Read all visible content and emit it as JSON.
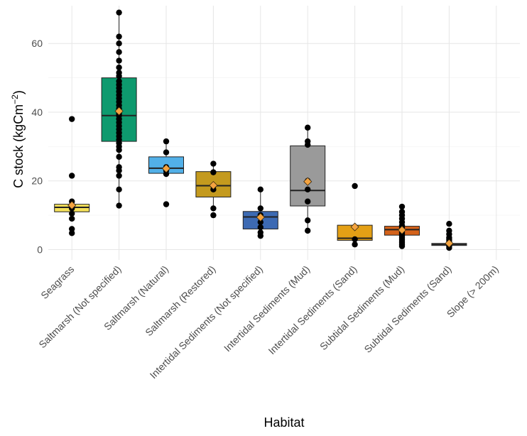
{
  "chart_data": {
    "type": "boxplot",
    "title": "",
    "xlabel": "Habitat",
    "ylabel": {
      "main": "C stock (kgCm",
      "superscript": "−2",
      "close": ")"
    },
    "ylim": [
      -3,
      71
    ],
    "yticks": [
      0,
      20,
      40,
      60
    ],
    "grid": true,
    "legend": "none",
    "mean_marker": {
      "shape": "diamond",
      "color": "#F4A340"
    },
    "categories": [
      {
        "name": "Seagrass",
        "color": "#F4E05A",
        "box": {
          "q1": 11.0,
          "median": 12.3,
          "q3": 13.2,
          "whisker_low": 11.0,
          "whisker_high": 13.2
        },
        "mean": 12.9,
        "points": [
          38.0,
          21.5,
          14.0,
          13.0,
          12.5,
          12.0,
          10.5,
          9.0,
          6.0,
          4.8
        ]
      },
      {
        "name": "Saltmarsh (Not specified)",
        "color": "#0E9A6E",
        "box": {
          "q1": 31.5,
          "median": 39.0,
          "q3": 50.0,
          "whisker_low": 12.8,
          "whisker_high": 69.0
        },
        "mean": 40.3,
        "points": [
          69.0,
          62.0,
          60.0,
          57.5,
          55.0,
          53.0,
          51.5,
          50.5,
          49.0,
          48.0,
          47.0,
          46.0,
          45.0,
          44.0,
          43.0,
          42.0,
          41.0,
          40.0,
          39.5,
          39.0,
          38.0,
          37.0,
          36.0,
          35.0,
          34.0,
          33.0,
          32.0,
          31.0,
          30.0,
          29.0,
          27.0,
          24.0,
          23.0,
          21.5,
          17.5,
          12.8
        ]
      },
      {
        "name": "Saltmarsh (Natural)",
        "color": "#52B0E8",
        "box": {
          "q1": 22.2,
          "median": 23.7,
          "q3": 27.0,
          "whisker_low": 21.8,
          "whisker_high": 31.5
        },
        "mean": 23.6,
        "points": [
          31.5,
          28.3,
          24.0,
          23.0,
          22.0,
          13.2
        ]
      },
      {
        "name": "Saltmarsh (Restored)",
        "color": "#C49A1E",
        "box": {
          "q1": 15.3,
          "median": 18.6,
          "q3": 22.7,
          "whisker_low": 12.0,
          "whisker_high": 25.0
        },
        "mean": 18.7,
        "points": [
          25.0,
          22.5,
          18.5,
          17.5,
          12.0,
          10.0
        ]
      },
      {
        "name": "Intertidal Sediments (Not specified)",
        "color": "#3D6AB3",
        "box": {
          "q1": 6.0,
          "median": 9.5,
          "q3": 11.1,
          "whisker_low": 4.0,
          "whisker_high": 17.5
        },
        "mean": 9.4,
        "points": [
          17.5,
          12.0,
          10.0,
          8.0,
          6.5,
          5.0,
          4.0
        ]
      },
      {
        "name": "Intertidal Sediments (Mud)",
        "color": "#9A9A9A",
        "box": {
          "q1": 12.7,
          "median": 17.2,
          "q3": 30.2,
          "whisker_low": 5.5,
          "whisker_high": 35.5
        },
        "mean": 19.8,
        "points": [
          35.5,
          31.5,
          30.5,
          20.0,
          17.5,
          14.0,
          8.5,
          5.5
        ]
      },
      {
        "name": "Intertidal Sediments (Sand)",
        "color": "#E4A015",
        "box": {
          "q1": 2.7,
          "median": 3.3,
          "q3": 7.1,
          "whisker_low": 1.5,
          "whisker_high": 7.1
        },
        "mean": 6.6,
        "points": [
          18.5,
          3.0,
          1.5
        ]
      },
      {
        "name": "Subtidal Sediments (Mud)",
        "color": "#D4621A",
        "box": {
          "q1": 4.2,
          "median": 5.8,
          "q3": 6.8,
          "whisker_low": 1.0,
          "whisker_high": 10.5
        },
        "mean": 5.7,
        "points": [
          12.5,
          11.0,
          10.0,
          9.0,
          8.0,
          7.0,
          6.5,
          6.0,
          5.5,
          5.0,
          4.5,
          4.0,
          3.5,
          3.0,
          2.5,
          2.0,
          1.5,
          1.0
        ]
      },
      {
        "name": "Subtidal Sediments (Sand)",
        "color": "#B5B5B5",
        "box": {
          "q1": 1.2,
          "median": 1.5,
          "q3": 1.8,
          "whisker_low": 0.5,
          "whisker_high": 2.0
        },
        "mean": 1.8,
        "points": [
          7.5,
          5.5,
          4.5,
          3.5,
          3.0,
          2.5,
          1.5,
          1.0,
          0.5
        ]
      },
      {
        "name": "Slope (> 200m)",
        "color": "#000000",
        "box": null,
        "mean": null,
        "points": []
      }
    ]
  }
}
